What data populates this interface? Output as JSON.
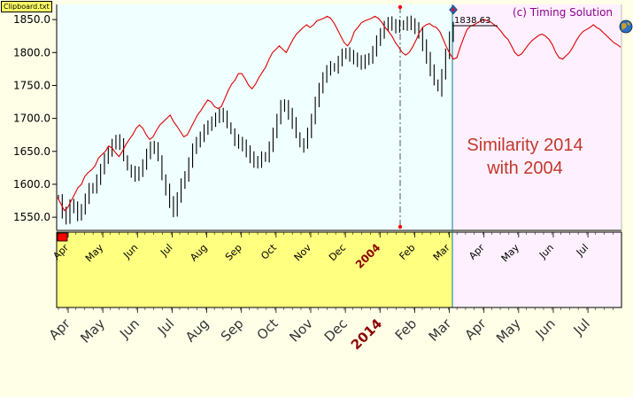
{
  "window": {
    "clipboard_label": "Clipboard.txt"
  },
  "chart_data": {
    "type": "line",
    "copyright": "(c) Timing Solution",
    "annotation": [
      "Similarity 2014",
      "with 2004"
    ],
    "last_price_label": "1838.63",
    "y_ticks": [
      "1850.0",
      "1800.0",
      "1750.0",
      "1700.0",
      "1650.0",
      "1600.0",
      "1550.0"
    ],
    "ylim": [
      1530,
      1873
    ],
    "axis_top": [
      {
        "label": "Apr",
        "year": false
      },
      {
        "label": "May",
        "year": false
      },
      {
        "label": "Jun",
        "year": false
      },
      {
        "label": "Jul",
        "year": false
      },
      {
        "label": "Aug",
        "year": false
      },
      {
        "label": "Sep",
        "year": false
      },
      {
        "label": "Oct",
        "year": false
      },
      {
        "label": "Nov",
        "year": false
      },
      {
        "label": "Dec",
        "year": false
      },
      {
        "label": "2004",
        "year": true
      },
      {
        "label": "Feb",
        "year": false
      },
      {
        "label": "Mar",
        "year": false
      },
      {
        "label": "Apr",
        "year": false
      },
      {
        "label": "May",
        "year": false
      },
      {
        "label": "Jun",
        "year": false
      },
      {
        "label": "Jul",
        "year": false
      }
    ],
    "axis_bottom": [
      {
        "label": "Apr",
        "year": false
      },
      {
        "label": "May",
        "year": false
      },
      {
        "label": "Jun",
        "year": false
      },
      {
        "label": "Jul",
        "year": false
      },
      {
        "label": "Aug",
        "year": false
      },
      {
        "label": "Sep",
        "year": false
      },
      {
        "label": "Oct",
        "year": false
      },
      {
        "label": "Nov",
        "year": false
      },
      {
        "label": "Dec",
        "year": false
      },
      {
        "label": "2014",
        "year": true
      },
      {
        "label": "Feb",
        "year": false
      },
      {
        "label": "Mar",
        "year": false
      },
      {
        "label": "Apr",
        "year": false
      },
      {
        "label": "May",
        "year": false
      },
      {
        "label": "Jun",
        "year": false
      },
      {
        "label": "Jul",
        "year": false
      }
    ],
    "series": [
      {
        "kind": "price-bars",
        "color": "#000000",
        "values": [
          1580,
          1560,
          1550,
          1570,
          1565,
          1552,
          1560,
          1575,
          1590,
          1598,
          1610,
          1625,
          1640,
          1650,
          1660,
          1665,
          1658,
          1640,
          1625,
          1622,
          1615,
          1620,
          1630,
          1645,
          1655,
          1652,
          1640,
          1610,
          1595,
          1575,
          1560,
          1580,
          1600,
          1610,
          1630,
          1650,
          1668,
          1675,
          1685,
          1690,
          1695,
          1700,
          1705,
          1700,
          1690,
          1680,
          1670,
          1665,
          1660,
          1650,
          1640,
          1632,
          1630,
          1638,
          1645,
          1660,
          1680,
          1700,
          1720,
          1718,
          1705,
          1690,
          1675,
          1660,
          1665,
          1680,
          1700,
          1725,
          1745,
          1760,
          1770,
          1775,
          1780,
          1790,
          1800,
          1800,
          1795,
          1790,
          1785,
          1780,
          1785,
          1795,
          1805,
          1820,
          1830,
          1840,
          1845,
          1840,
          1835,
          1838,
          1845,
          1850,
          1845,
          1838,
          1830,
          1810,
          1790,
          1770,
          1755,
          1745,
          1770,
          1800,
          1825,
          1838.63
        ]
      },
      {
        "kind": "projection-line",
        "color": "#e00000",
        "values": [
          1580,
          1570,
          1560,
          1565,
          1575,
          1585,
          1595,
          1600,
          1612,
          1618,
          1622,
          1628,
          1640,
          1645,
          1650,
          1658,
          1655,
          1648,
          1642,
          1650,
          1660,
          1668,
          1675,
          1685,
          1690,
          1685,
          1675,
          1668,
          1672,
          1682,
          1690,
          1695,
          1700,
          1705,
          1695,
          1688,
          1680,
          1672,
          1675,
          1685,
          1695,
          1705,
          1712,
          1720,
          1728,
          1725,
          1718,
          1715,
          1718,
          1730,
          1742,
          1752,
          1758,
          1768,
          1768,
          1760,
          1750,
          1745,
          1752,
          1762,
          1770,
          1778,
          1790,
          1800,
          1805,
          1810,
          1805,
          1800,
          1810,
          1820,
          1828,
          1833,
          1838,
          1842,
          1838,
          1842,
          1848,
          1850,
          1852,
          1855,
          1852,
          1845,
          1835,
          1825,
          1815,
          1810,
          1818,
          1832,
          1838,
          1845,
          1848,
          1850,
          1852,
          1855,
          1852,
          1846,
          1838,
          1832,
          1825,
          1815,
          1808,
          1800,
          1796,
          1800,
          1808,
          1818,
          1830,
          1838,
          1842,
          1844,
          1840,
          1838,
          1832,
          1820,
          1808,
          1798,
          1790,
          1792,
          1808,
          1822,
          1835,
          1840,
          1842,
          1845,
          1848,
          1850,
          1848,
          1846,
          1842,
          1838,
          1832,
          1825,
          1820,
          1810,
          1800,
          1795,
          1798,
          1805,
          1812,
          1818,
          1822,
          1826,
          1828,
          1825,
          1820,
          1812,
          1800,
          1792,
          1790,
          1795,
          1800,
          1808,
          1818,
          1826,
          1832,
          1835,
          1838,
          1842,
          1838,
          1835,
          1830,
          1825,
          1820,
          1815,
          1812,
          1808
        ]
      }
    ]
  }
}
